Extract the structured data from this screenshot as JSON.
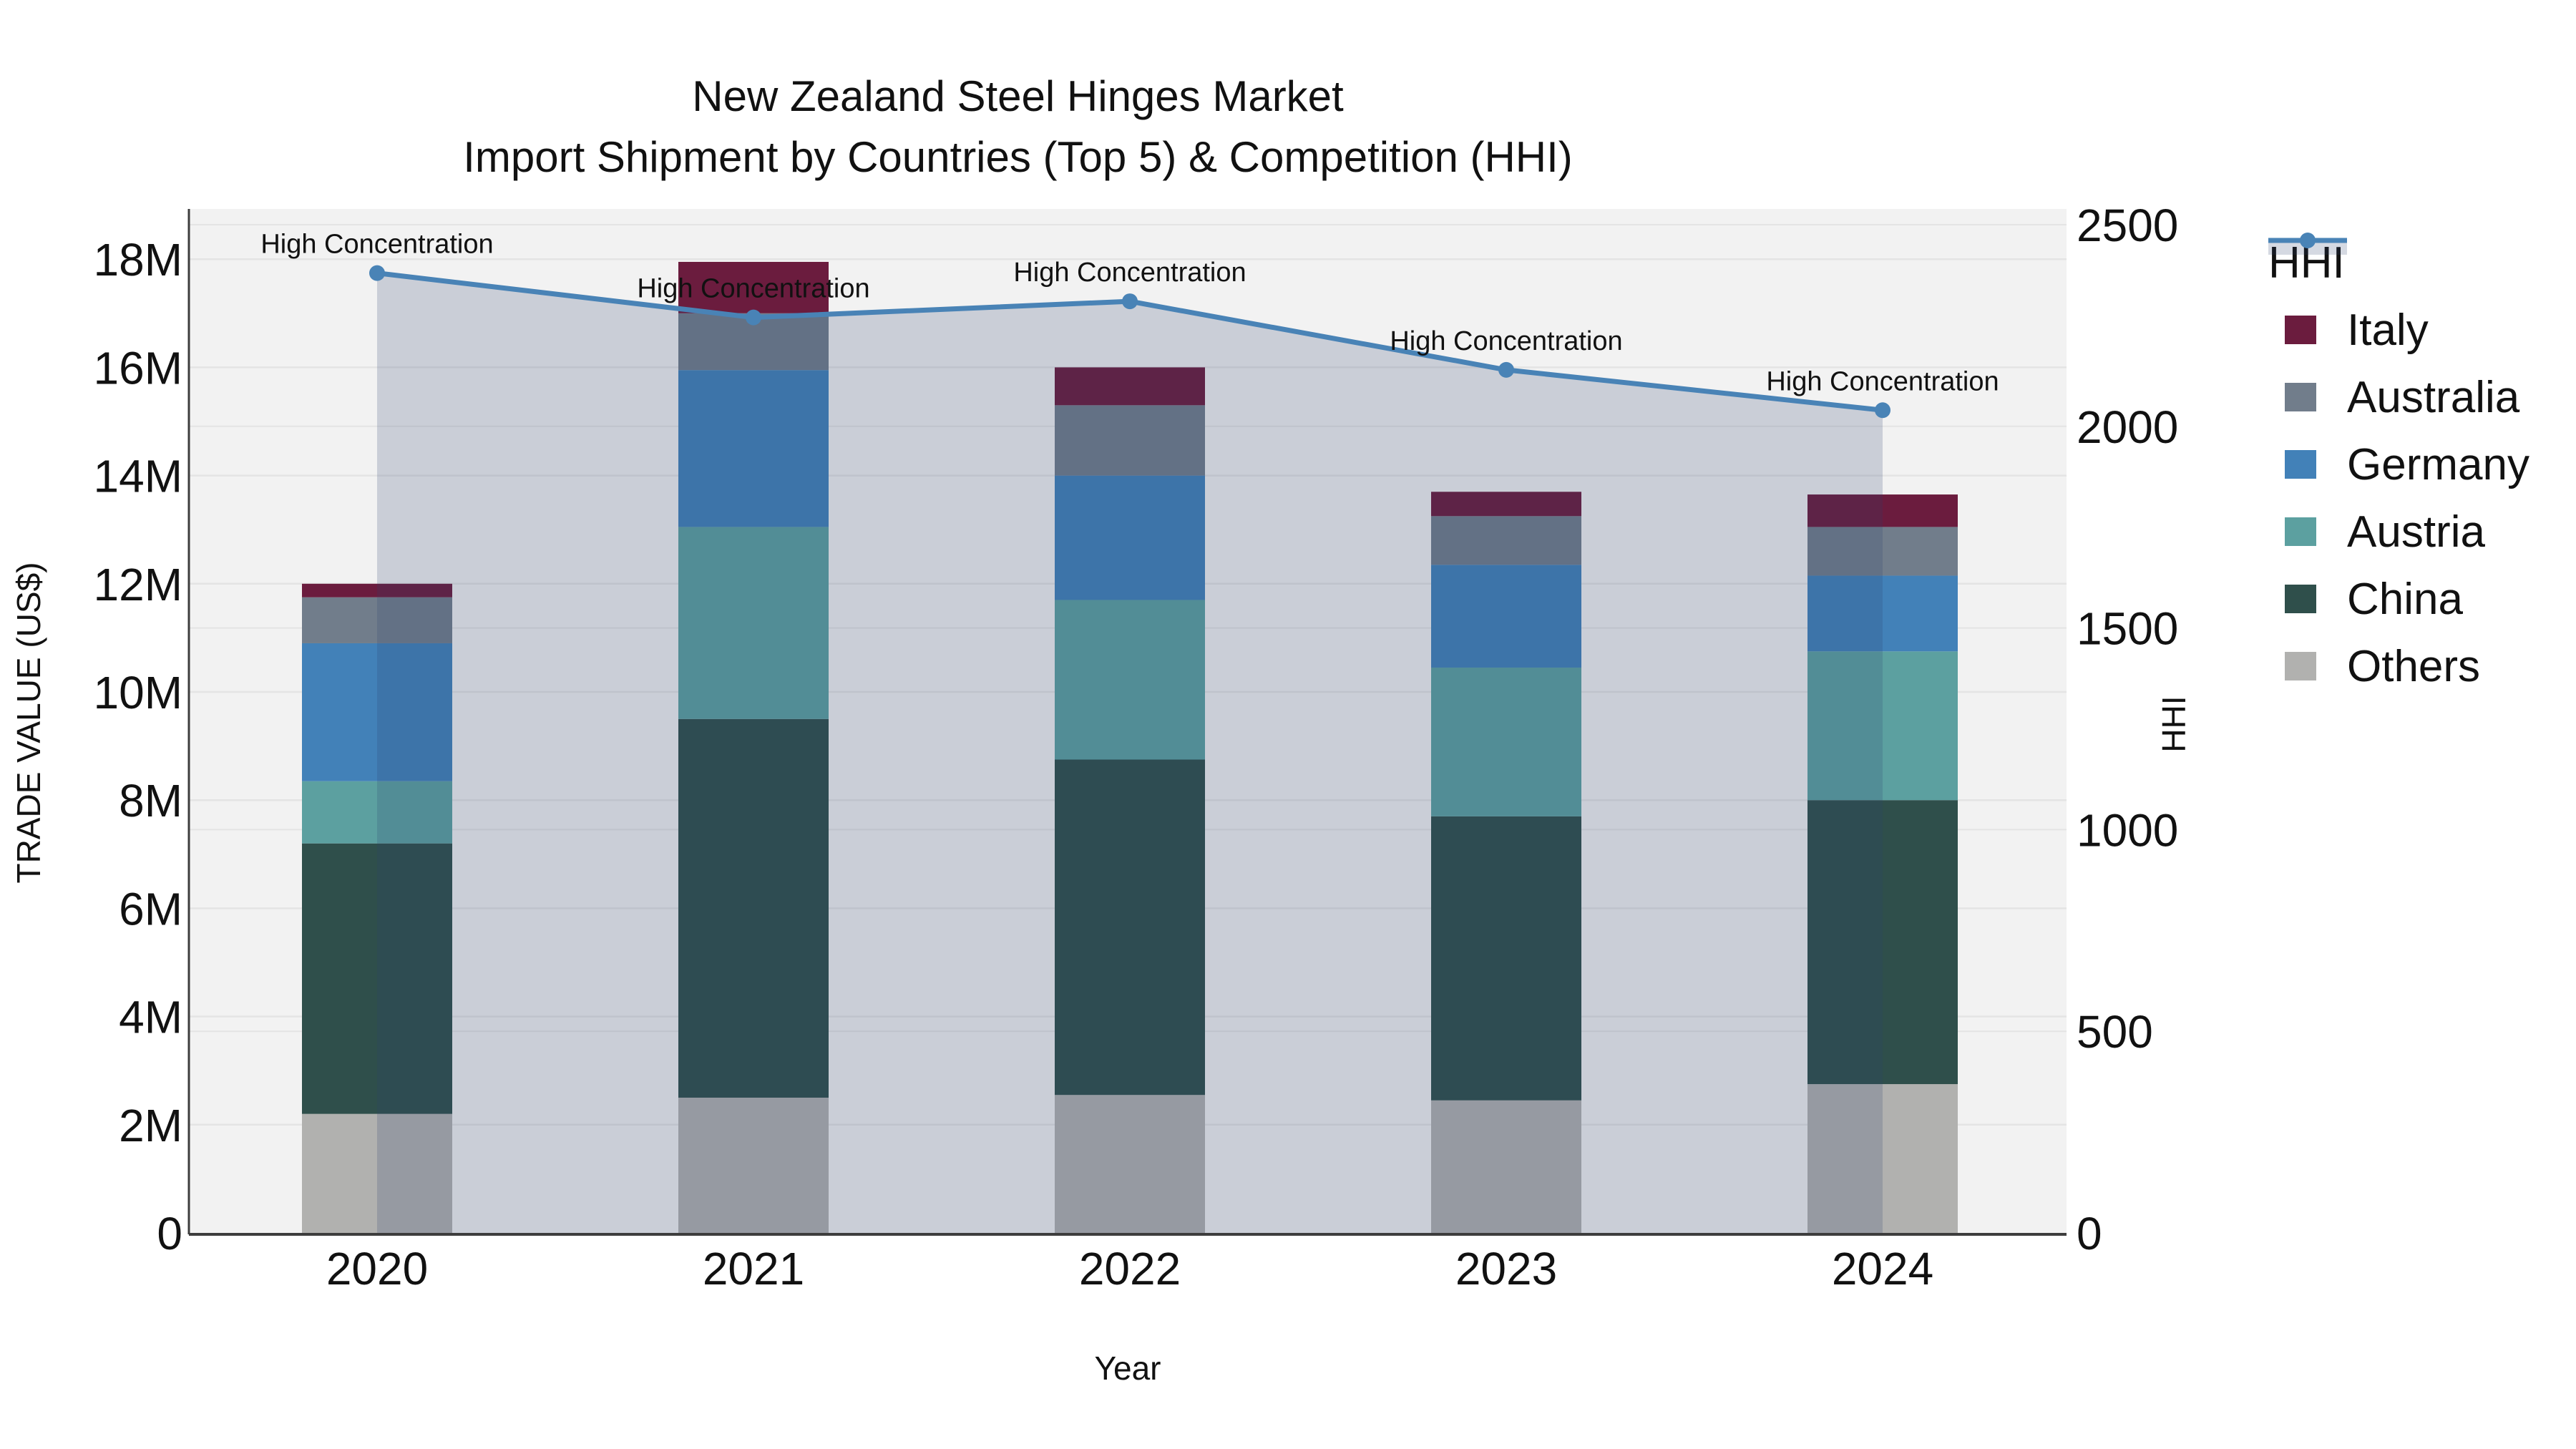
{
  "title": {
    "line1": "New Zealand Steel Hinges Market",
    "line2": "Import Shipment by Countries (Top 5) & Competition (HHI)"
  },
  "axes": {
    "y_left": {
      "title": "TRADE VALUE (US$)",
      "tick_labels": [
        "0",
        "2M",
        "4M",
        "6M",
        "8M",
        "10M",
        "12M",
        "14M",
        "16M",
        "18M"
      ],
      "tick_values_millions": [
        0,
        2,
        4,
        6,
        8,
        10,
        12,
        14,
        16,
        18
      ]
    },
    "y_right": {
      "title": "HHI",
      "tick_labels": [
        "0",
        "500",
        "1000",
        "1500",
        "2000",
        "2500"
      ],
      "tick_values": [
        0,
        500,
        1000,
        1500,
        2000,
        2500
      ]
    },
    "x": {
      "title": "Year",
      "tick_labels": [
        "2020",
        "2021",
        "2022",
        "2023",
        "2024"
      ]
    }
  },
  "chart_data": {
    "type": "bar+line",
    "stacked": true,
    "categories": [
      "2020",
      "2021",
      "2022",
      "2023",
      "2024"
    ],
    "unit": "million US$ (left axis), HHI index (right axis)",
    "series": [
      {
        "name": "Others",
        "color": "#b1b1af",
        "values": [
          2.2,
          2.5,
          2.55,
          2.45,
          2.75
        ]
      },
      {
        "name": "China",
        "color": "#2f4f4b",
        "values": [
          5.0,
          7.0,
          6.2,
          5.25,
          5.25
        ]
      },
      {
        "name": "Austria",
        "color": "#5ca0a0",
        "values": [
          1.15,
          3.55,
          2.95,
          2.75,
          2.75
        ]
      },
      {
        "name": "Germany",
        "color": "#4281b8",
        "values": [
          2.55,
          2.9,
          2.3,
          1.9,
          1.4
        ]
      },
      {
        "name": "Australia",
        "color": "#717d8b",
        "values": [
          0.85,
          1.05,
          1.3,
          0.9,
          0.9
        ]
      },
      {
        "name": "Italy",
        "color": "#6b1c3e",
        "values": [
          0.25,
          0.95,
          0.7,
          0.45,
          0.6
        ]
      }
    ],
    "bar_totals_millions": [
      12.0,
      17.95,
      16.0,
      13.7,
      13.65
    ],
    "line_series": {
      "name": "HHI",
      "axis": "right",
      "color": "#4983b6",
      "fill": "tozeroy",
      "fill_color": "rgba(45,64,110,0.20)",
      "values": [
        2380,
        2270,
        2310,
        2140,
        2040
      ]
    },
    "annotations": [
      {
        "text": "High Concentration",
        "category": "2020",
        "hhi": 2380
      },
      {
        "text": "High Concentration",
        "category": "2021",
        "hhi": 2270
      },
      {
        "text": "High Concentration",
        "category": "2022",
        "hhi": 2310
      },
      {
        "text": "High Concentration",
        "category": "2023",
        "hhi": 2140
      },
      {
        "text": "High Concentration",
        "category": "2024",
        "hhi": 2040
      }
    ],
    "title": "New Zealand Steel Hinges Market — Import Shipment by Countries (Top 5) & Competition (HHI)",
    "xlabel": "Year",
    "ylabel": "TRADE VALUE (US$)",
    "ylabel_right": "HHI",
    "ylim_left_millions": [
      0,
      18.93
    ],
    "ylim_right": [
      0,
      2540
    ],
    "grid": true,
    "legend_position": "right"
  },
  "legend": {
    "items": [
      {
        "label": "HHI",
        "type": "line",
        "color": "#4983b6"
      },
      {
        "label": "Italy",
        "type": "swatch",
        "color": "#6b1c3e"
      },
      {
        "label": "Australia",
        "type": "swatch",
        "color": "#717d8b"
      },
      {
        "label": "Germany",
        "type": "swatch",
        "color": "#4281b8"
      },
      {
        "label": "Austria",
        "type": "swatch",
        "color": "#5ca0a0"
      },
      {
        "label": "China",
        "type": "swatch",
        "color": "#2f4f4b"
      },
      {
        "label": "Others",
        "type": "swatch",
        "color": "#b1b1af"
      }
    ]
  },
  "colors": {
    "plot_background": "#f2f2f2",
    "grid_line": "#e4e4e4",
    "axis_line": "#3d3d3d",
    "hhi_line": "#4983b6",
    "hhi_fill": "rgba(45,64,110,0.20)",
    "text": "#111111"
  }
}
